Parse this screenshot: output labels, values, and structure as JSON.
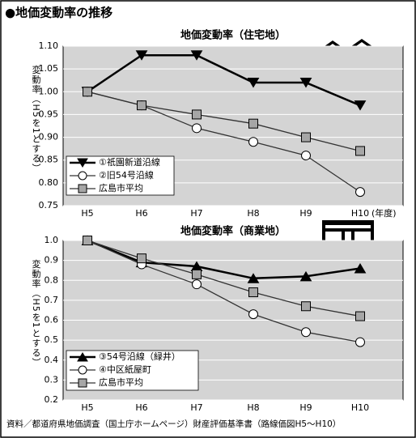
{
  "title": "●地価変動率の推移",
  "source": "資料／都道府県地価調査（国土庁ホームページ）財産評価基準書（路線価図H5～H10）",
  "chart_data": [
    {
      "type": "line",
      "title": "地価変動率（住宅地）",
      "y_label": "変動率（H5を1とする）",
      "x_unit": "(年度)",
      "categories": [
        "H5",
        "H6",
        "H7",
        "H8",
        "H9",
        "H10"
      ],
      "ylim": [
        0.75,
        1.1
      ],
      "yticks": [
        {
          "value": 1.1,
          "label": "1.10"
        },
        1.05,
        {
          "value": 1.0,
          "label": "1.00"
        },
        0.95,
        {
          "value": 0.9,
          "label": "0.90"
        },
        0.85,
        {
          "value": 0.8,
          "label": "0.80"
        },
        0.75
      ],
      "grid": true,
      "legend": "lower left",
      "series": [
        {
          "name": "①祇園新道沿線",
          "color": "#000000",
          "marker": "triangle-down",
          "marker_fill": "#000000",
          "values": [
            1.0,
            1.08,
            1.08,
            1.02,
            1.02,
            0.97
          ]
        },
        {
          "name": "②旧54号沿線",
          "color": "#333333",
          "marker": "circle",
          "marker_fill": "#ffffff",
          "values": [
            1.0,
            0.97,
            0.92,
            0.89,
            0.86,
            0.78
          ]
        },
        {
          "name": "広島市平均",
          "color": "#333333",
          "marker": "square",
          "marker_fill": "#a6a6a6",
          "values": [
            1.0,
            0.97,
            0.95,
            0.93,
            0.9,
            0.87
          ]
        }
      ]
    },
    {
      "type": "line",
      "title": "地価変動率（商業地）",
      "y_label": "変動率（H5を1とする）",
      "categories": [
        "H5",
        "H6",
        "H7",
        "H8",
        "H9",
        "H10"
      ],
      "ylim": [
        0.2,
        1.0
      ],
      "yticks": [
        {
          "value": 1.0,
          "label": "1.0"
        },
        0.9,
        0.8,
        0.7,
        0.6,
        0.5,
        0.4,
        0.3,
        0.2
      ],
      "grid": true,
      "legend": "lower left",
      "series": [
        {
          "name": "③54号沿線（緑井）",
          "color": "#000000",
          "marker": "triangle-up",
          "marker_fill": "#000000",
          "values": [
            1.0,
            0.89,
            0.87,
            0.81,
            0.82,
            0.86
          ]
        },
        {
          "name": "④中区紙屋町",
          "color": "#333333",
          "marker": "circle",
          "marker_fill": "#ffffff",
          "values": [
            1.0,
            0.88,
            0.78,
            0.63,
            0.54,
            0.49
          ]
        },
        {
          "name": "広島市平均",
          "color": "#333333",
          "marker": "square",
          "marker_fill": "#a6a6a6",
          "values": [
            1.0,
            0.91,
            0.83,
            0.74,
            0.67,
            0.62
          ]
        }
      ]
    }
  ]
}
